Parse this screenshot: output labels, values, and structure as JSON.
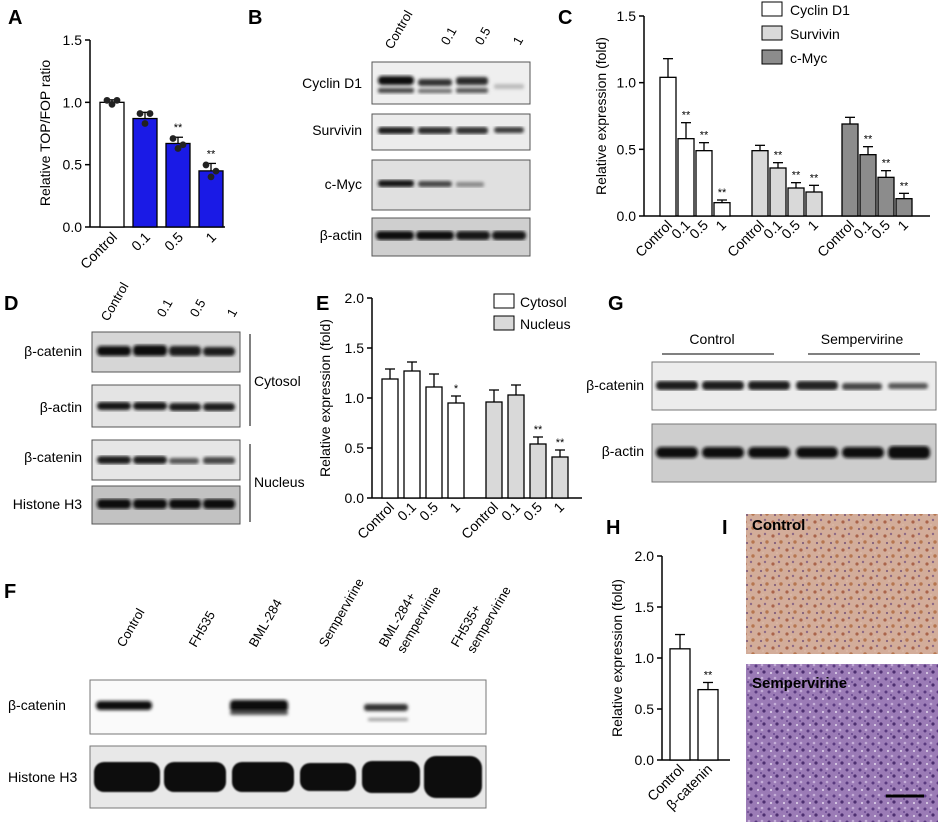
{
  "figure": {
    "panels": {
      "A": {
        "label": "A",
        "ylabel": "Relative TOP/FOP ratio"
      },
      "B": {
        "label": "B"
      },
      "C": {
        "label": "C",
        "ylabel": "Relative expression (fold)"
      },
      "D": {
        "label": "D",
        "cytosol": "Cytosol",
        "nucleus": "Nucleus"
      },
      "E": {
        "label": "E",
        "ylabel": "Relative expression (fold)"
      },
      "F": {
        "label": "F"
      },
      "G": {
        "label": "G",
        "group_control": "Control",
        "group_treat": "Sempervirine"
      },
      "H": {
        "label": "H",
        "ylabel": "Relative expression (fold)"
      },
      "I": {
        "label": "I",
        "top_label": "Control",
        "bottom_label": "Sempervirine"
      }
    },
    "blots": {
      "B_lanes": [
        "Control",
        "0.1",
        "0.5",
        "1"
      ],
      "B_rows": [
        "Cyclin D1",
        "Survivin",
        "c-Myc",
        "β-actin"
      ],
      "D_lanes": [
        "Control",
        "0.1",
        "0.5",
        "1"
      ],
      "D_rows": [
        "β-catenin",
        "β-actin",
        "β-catenin",
        "Histone H3"
      ],
      "F_lanes": [
        "Control",
        "FH535",
        "BML-284",
        "Sempervirine",
        "BML-284+ sempervirine",
        "FH535+ sempervirine"
      ],
      "F_rows": [
        "β-catenin",
        "Histone H3"
      ],
      "G_rows": [
        "β-catenin",
        "β-actin"
      ]
    },
    "colors": {
      "blue_bar": "#1a1ae6",
      "light_gray": "#d9d9d9",
      "dark_gray": "#8c8c8c",
      "blot_bg": "#e8e8e8",
      "band": "#111111",
      "ihc_top": "#c9a090",
      "ihc_bottom": "#8a6aa8"
    }
  },
  "chart_data": [
    {
      "panel": "A",
      "type": "bar",
      "categories": [
        "Control",
        "0.1",
        "0.5",
        "1"
      ],
      "values": [
        1.0,
        0.87,
        0.67,
        0.45
      ],
      "errors": [
        0.02,
        0.05,
        0.05,
        0.06
      ],
      "significance": [
        "",
        "",
        "**",
        "**"
      ],
      "ylabel": "Relative TOP/FOP ratio",
      "ylim": [
        0,
        1.5
      ],
      "yticks": [
        "0.0",
        "0.5",
        "1.0",
        "1.5"
      ]
    },
    {
      "panel": "C",
      "type": "bar",
      "categories": [
        "Control",
        "0.1",
        "0.5",
        "1"
      ],
      "series": [
        {
          "name": "Cyclin D1",
          "values": [
            1.04,
            0.58,
            0.49,
            0.1
          ],
          "errors": [
            0.14,
            0.12,
            0.06,
            0.02
          ],
          "significance": [
            "",
            "**",
            "**",
            "**"
          ]
        },
        {
          "name": "Survivin",
          "values": [
            0.49,
            0.36,
            0.21,
            0.18
          ],
          "errors": [
            0.04,
            0.04,
            0.04,
            0.05
          ],
          "significance": [
            "",
            "**",
            "**",
            "**"
          ]
        },
        {
          "name": "c-Myc",
          "values": [
            0.69,
            0.46,
            0.29,
            0.13
          ],
          "errors": [
            0.05,
            0.06,
            0.05,
            0.04
          ],
          "significance": [
            "",
            "**",
            "**",
            "**"
          ]
        }
      ],
      "ylabel": "Relative expression (fold)",
      "ylim": [
        0,
        1.5
      ],
      "yticks": [
        "0.0",
        "0.5",
        "1.0",
        "1.5"
      ],
      "legend": "top-right"
    },
    {
      "panel": "E",
      "type": "bar",
      "categories": [
        "Control",
        "0.1",
        "0.5",
        "1"
      ],
      "series": [
        {
          "name": "Cytosol",
          "values": [
            1.19,
            1.27,
            1.11,
            0.95
          ],
          "errors": [
            0.1,
            0.09,
            0.13,
            0.07
          ],
          "significance": [
            "",
            "",
            "",
            "*"
          ]
        },
        {
          "name": "Nucleus",
          "values": [
            0.96,
            1.03,
            0.54,
            0.41
          ],
          "errors": [
            0.12,
            0.1,
            0.07,
            0.07
          ],
          "significance": [
            "",
            "",
            "**",
            "**"
          ]
        }
      ],
      "ylabel": "Relative expression (fold)",
      "ylim": [
        0,
        2.0
      ],
      "yticks": [
        "0.0",
        "0.5",
        "1.0",
        "1.5",
        "2.0"
      ],
      "legend": "top-right"
    },
    {
      "panel": "H",
      "type": "bar",
      "categories": [
        "Control",
        "β-catenin"
      ],
      "values": [
        1.09,
        0.69
      ],
      "errors": [
        0.14,
        0.07
      ],
      "significance": [
        "",
        "**"
      ],
      "ylabel": "Relative expression (fold)",
      "ylim": [
        0,
        2.0
      ],
      "yticks": [
        "0.0",
        "0.5",
        "1.0",
        "1.5",
        "2.0"
      ]
    }
  ]
}
